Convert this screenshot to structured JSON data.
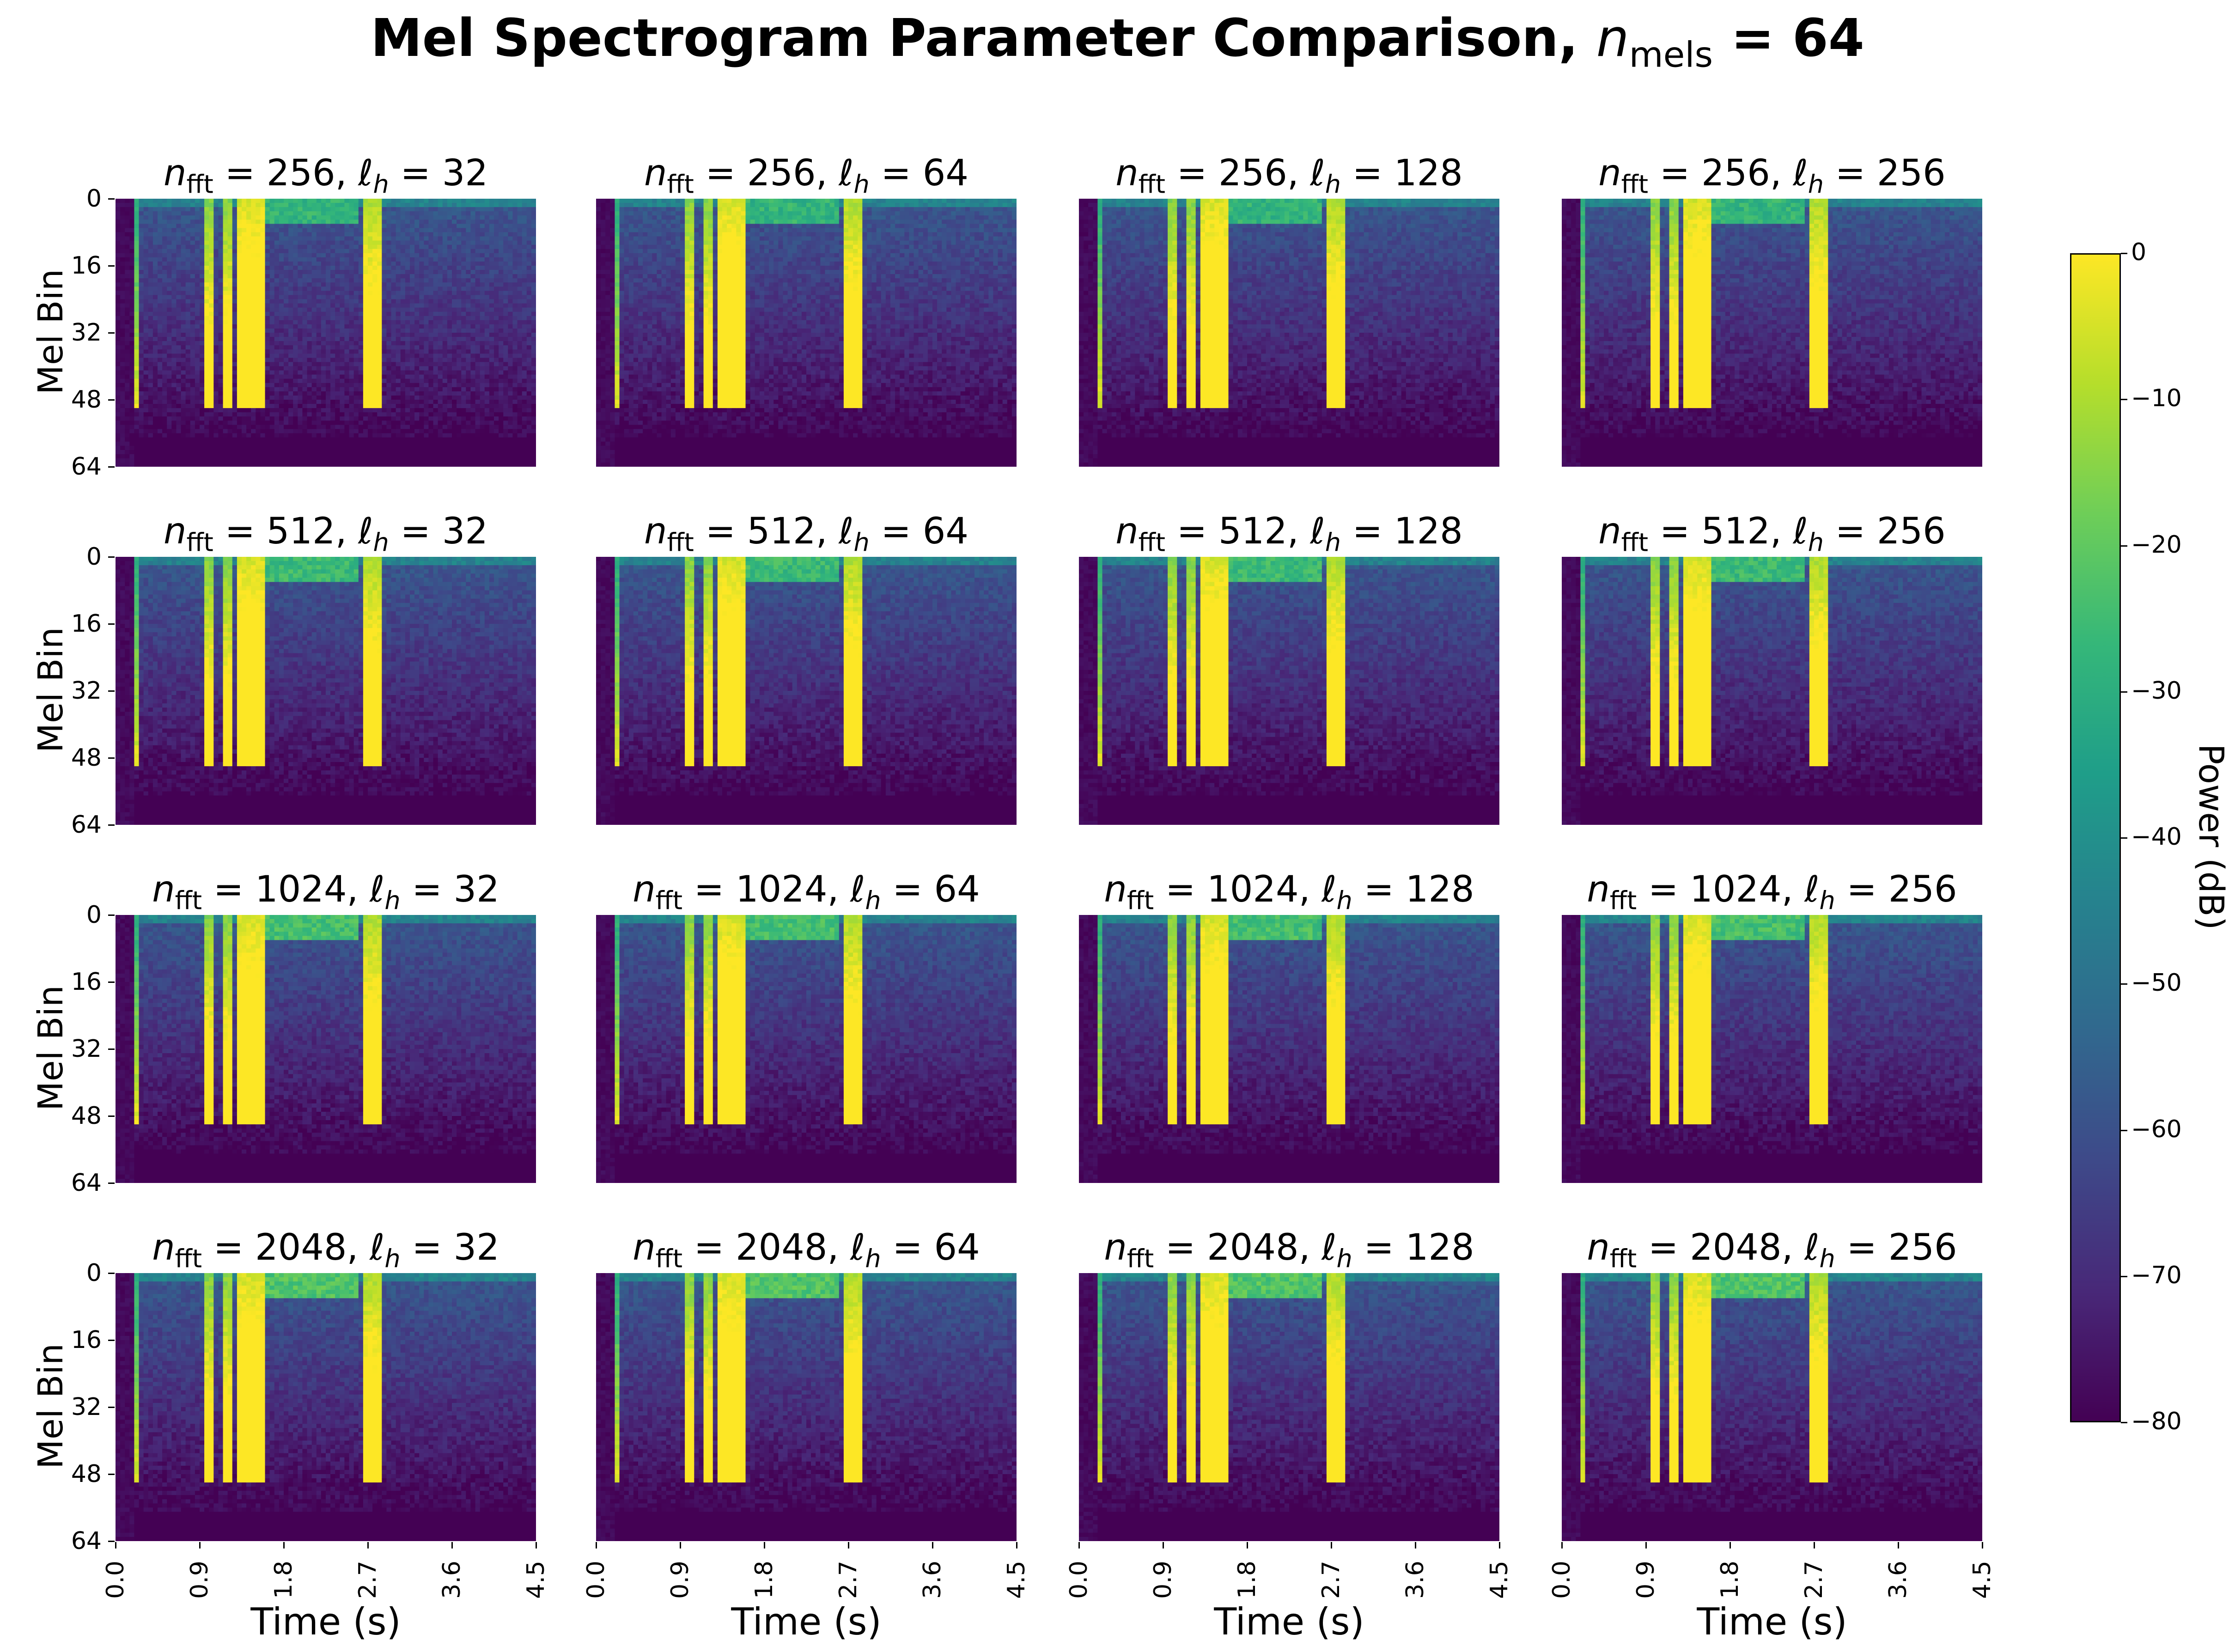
{
  "title": {
    "prefix": "Mel Spectrogram Parameter Comparison, ",
    "var": "n",
    "sub": "mels",
    "rest": " = 64"
  },
  "colorbar": {
    "label": "Power (dB)",
    "ticks": [
      "0",
      "−10",
      "−20",
      "−30",
      "−40",
      "−50",
      "−60",
      "−70",
      "−80"
    ],
    "colormap": "viridis",
    "colors": [
      "#440154",
      "#482878",
      "#3e4989",
      "#31688e",
      "#26828e",
      "#1f9e89",
      "#35b779",
      "#6ece58",
      "#b5de2b",
      "#fde725"
    ]
  },
  "chart_data": {
    "type": "heatmap",
    "title": "Mel Spectrogram Parameter Comparison, n_mels = 64",
    "xlabel": "Time (s)",
    "ylabel": "Mel Bin",
    "x_ticks": [
      "0.0",
      "0.9",
      "1.8",
      "2.7",
      "3.6",
      "4.5"
    ],
    "y_ticks": [
      "0",
      "16",
      "32",
      "48",
      "64"
    ],
    "xlim": [
      0,
      4.5
    ],
    "ylim": [
      64,
      0
    ],
    "color_range_db": [
      -80,
      0
    ],
    "n_mels": 64,
    "n_fft_values": [
      "256",
      "512",
      "1024",
      "2048"
    ],
    "hop_values": [
      "32",
      "64",
      "128",
      "256"
    ],
    "panels": [
      {
        "n_fft": "256",
        "hop": "32"
      },
      {
        "n_fft": "256",
        "hop": "64"
      },
      {
        "n_fft": "256",
        "hop": "128"
      },
      {
        "n_fft": "256",
        "hop": "256"
      },
      {
        "n_fft": "512",
        "hop": "32"
      },
      {
        "n_fft": "512",
        "hop": "64"
      },
      {
        "n_fft": "512",
        "hop": "128"
      },
      {
        "n_fft": "512",
        "hop": "256"
      },
      {
        "n_fft": "1024",
        "hop": "32"
      },
      {
        "n_fft": "1024",
        "hop": "64"
      },
      {
        "n_fft": "1024",
        "hop": "128"
      },
      {
        "n_fft": "1024",
        "hop": "256"
      },
      {
        "n_fft": "2048",
        "hop": "32"
      },
      {
        "n_fft": "2048",
        "hop": "64"
      },
      {
        "n_fft": "2048",
        "hop": "128"
      },
      {
        "n_fft": "2048",
        "hop": "256"
      }
    ],
    "events_s": [
      {
        "t": [
          0.0,
          0.2
        ],
        "db": -80
      },
      {
        "t": [
          0.2,
          0.25
        ],
        "db": -30
      },
      {
        "t": [
          0.95,
          1.05
        ],
        "db": -15
      },
      {
        "t": [
          1.15,
          1.25
        ],
        "db": -15
      },
      {
        "t": [
          1.3,
          1.6
        ],
        "db": -5
      },
      {
        "t": [
          2.65,
          2.85
        ],
        "db": -10
      }
    ]
  }
}
